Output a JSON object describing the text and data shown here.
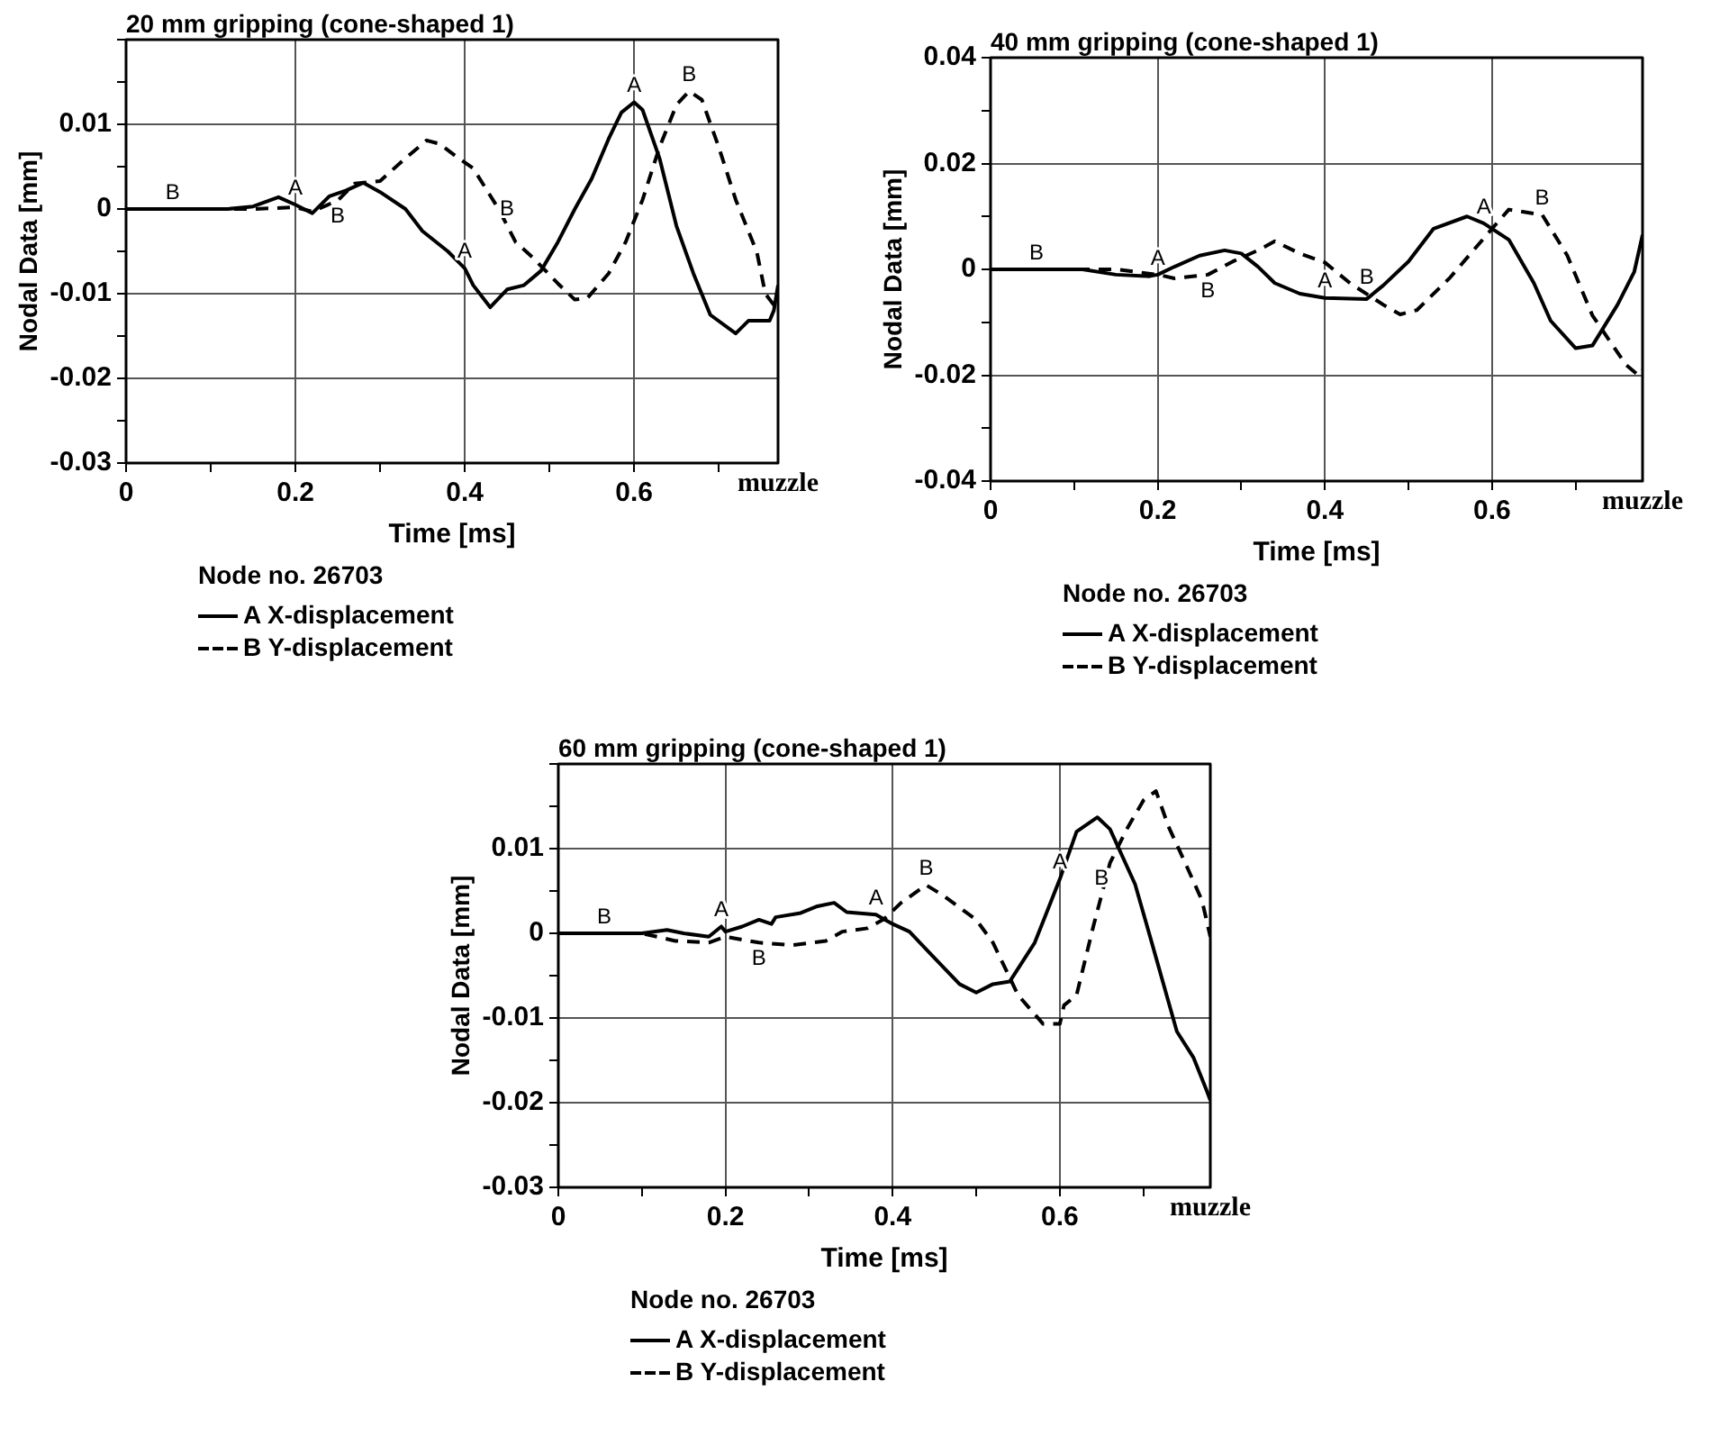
{
  "chart_data": [
    {
      "type": "line",
      "title": "20 mm gripping (cone-shaped 1)",
      "xlabel": "Time [ms]",
      "ylabel": "Nodal Data [mm]",
      "legend_title": "Node no. 26703",
      "legend": "bottom left",
      "grid": true,
      "marker": "none",
      "xlim": [
        0,
        0.77
      ],
      "xticks": [
        0,
        {
          "value": 0.1,
          "label": null
        },
        0.2,
        {
          "value": 0.3,
          "label": null
        },
        0.4,
        {
          "value": 0.5,
          "label": null
        },
        0.6,
        {
          "value": 0.7,
          "label": null
        }
      ],
      "ylim": [
        -0.03,
        0.02
      ],
      "yticks": [
        -0.03,
        {
          "value": -0.025,
          "label": null
        },
        -0.02,
        {
          "value": -0.015,
          "label": null
        },
        -0.01,
        {
          "value": -0.005,
          "label": null
        },
        0,
        {
          "value": 0.005,
          "label": null
        },
        0.01,
        {
          "value": 0.015,
          "label": null
        },
        {
          "value": 0.02,
          "label": null
        }
      ],
      "series": [
        {
          "name": "A X-displacement",
          "color": "#000000",
          "line_style": "solid",
          "x": [
            0,
            0.12,
            0.15,
            0.18,
            0.2,
            0.22,
            0.24,
            0.26,
            0.28,
            0.3,
            0.33,
            0.35,
            0.38,
            0.4,
            0.41,
            0.43,
            0.45,
            0.47,
            0.49,
            0.51,
            0.53,
            0.55,
            0.57,
            0.585,
            0.6,
            0.61,
            0.63,
            0.65,
            0.67,
            0.69,
            0.72,
            0.735,
            0.76,
            0.765,
            0.77
          ],
          "values": [
            0,
            0,
            0.0003,
            0.0014,
            0.0005,
            -0.0005,
            0.0015,
            0.0022,
            0.0031,
            0.002,
            0,
            -0.0026,
            -0.005,
            -0.007,
            -0.009,
            -0.0116,
            -0.0095,
            -0.009,
            -0.0073,
            -0.0039,
            0,
            0.0036,
            0.0083,
            0.0114,
            0.0126,
            0.0117,
            0.006,
            -0.002,
            -0.0076,
            -0.0125,
            -0.0147,
            -0.0132,
            -0.0132,
            -0.012,
            -0.009
          ]
        },
        {
          "name": "B Y-displacement",
          "color": "#000000",
          "line_style": "dashed",
          "x": [
            0,
            0.15,
            0.2,
            0.22,
            0.25,
            0.27,
            0.3,
            0.33,
            0.355,
            0.37,
            0.39,
            0.41,
            0.44,
            0.46,
            0.48,
            0.51,
            0.53,
            0.545,
            0.57,
            0.59,
            0.61,
            0.63,
            0.65,
            0.665,
            0.68,
            0.7,
            0.72,
            0.745,
            0.755,
            0.77
          ],
          "values": [
            0,
            0,
            0.0002,
            -0.0003,
            0.001,
            0.003,
            0.0033,
            0.006,
            0.0081,
            0.0077,
            0.0062,
            0.0048,
            0,
            -0.0039,
            -0.0057,
            -0.0088,
            -0.0107,
            -0.0105,
            -0.0076,
            -0.0039,
            0.0011,
            0.0073,
            0.0123,
            0.0139,
            0.0129,
            0.0073,
            0.0011,
            -0.0051,
            -0.01,
            -0.012
          ]
        }
      ],
      "annotations": [
        "muzzle",
        {
          "text": "B",
          "x": 0.055,
          "y": 0
        },
        {
          "text": "A",
          "x": 0.2,
          "y": 0.0005
        },
        {
          "text": "B",
          "x": 0.25,
          "y": 0.001
        },
        {
          "text": "A",
          "x": 0.4,
          "y": -0.007
        },
        {
          "text": "B",
          "x": 0.45,
          "y": -0.002
        },
        {
          "text": "A",
          "x": 0.6,
          "y": 0.0126
        },
        {
          "text": "B",
          "x": 0.665,
          "y": 0.0139
        }
      ]
    },
    {
      "type": "line",
      "title": "40 mm gripping (cone-shaped 1)",
      "xlabel": "Time [ms]",
      "ylabel": "Nodal Data [mm]",
      "legend_title": "Node no. 26703",
      "legend": "bottom left",
      "grid": true,
      "marker": "none",
      "xlim": [
        0,
        0.78
      ],
      "xticks": [
        0,
        {
          "value": 0.1,
          "label": null
        },
        0.2,
        {
          "value": 0.3,
          "label": null
        },
        0.4,
        {
          "value": 0.5,
          "label": null
        },
        0.6,
        {
          "value": 0.7,
          "label": null
        }
      ],
      "ylim": [
        -0.04,
        0.04
      ],
      "yticks": [
        -0.04,
        {
          "value": -0.03,
          "label": null
        },
        -0.02,
        {
          "value": -0.01,
          "label": null
        },
        0,
        {
          "value": 0.01,
          "label": null
        },
        0.02,
        {
          "value": 0.03,
          "label": null
        },
        0.04
      ],
      "series": [
        {
          "name": "A X-displacement",
          "color": "#000000",
          "line_style": "solid",
          "x": [
            0,
            0.11,
            0.15,
            0.19,
            0.2,
            0.22,
            0.25,
            0.28,
            0.3,
            0.32,
            0.34,
            0.37,
            0.4,
            0.45,
            0.47,
            0.5,
            0.53,
            0.57,
            0.59,
            0.62,
            0.65,
            0.67,
            0.7,
            0.72,
            0.75,
            0.77,
            0.78
          ],
          "values": [
            0,
            0,
            -0.001,
            -0.0013,
            -0.001,
            0.0005,
            0.0026,
            0.0036,
            0.003,
            0.0005,
            -0.0026,
            -0.0046,
            -0.0054,
            -0.0056,
            -0.003,
            0.0015,
            0.0077,
            0.01,
            0.0087,
            0.0056,
            -0.0026,
            -0.0097,
            -0.0149,
            -0.0144,
            -0.0067,
            -0.0005,
            0.0065
          ]
        },
        {
          "name": "B Y-displacement",
          "color": "#000000",
          "line_style": "dashed",
          "x": [
            0,
            0.15,
            0.2,
            0.22,
            0.26,
            0.29,
            0.32,
            0.34,
            0.37,
            0.4,
            0.43,
            0.47,
            0.49,
            0.51,
            0.55,
            0.6,
            0.62,
            0.66,
            0.69,
            0.72,
            0.76,
            0.775,
            0.78
          ],
          "values": [
            0,
            0,
            -0.001,
            -0.0017,
            -0.001,
            0.0015,
            0.0036,
            0.0053,
            0.003,
            0.0013,
            -0.0026,
            -0.0067,
            -0.0085,
            -0.0077,
            -0.0015,
            0.0077,
            0.0113,
            0.0103,
            0.0026,
            -0.0087,
            -0.018,
            -0.02,
            -0.019
          ]
        }
      ],
      "annotations": [
        "muzzle",
        {
          "text": "B",
          "x": 0.055,
          "y": 0
        },
        {
          "text": "A",
          "x": 0.2,
          "y": -0.001
        },
        {
          "text": "B",
          "x": 0.26,
          "y": -0.001
        },
        {
          "text": "A",
          "x": 0.4,
          "y": -0.0054
        },
        {
          "text": "B",
          "x": 0.45,
          "y": -0.0046
        },
        {
          "text": "A",
          "x": 0.59,
          "y": 0.0087
        },
        {
          "text": "B",
          "x": 0.66,
          "y": 0.0103
        }
      ]
    },
    {
      "type": "line",
      "title": "60 mm gripping (cone-shaped 1)",
      "xlabel": "Time [ms]",
      "ylabel": "Nodal Data [mm]",
      "legend_title": "Node no. 26703",
      "legend": "bottom left",
      "grid": true,
      "marker": "none",
      "xlim": [
        0,
        0.78
      ],
      "xticks": [
        0,
        {
          "value": 0.1,
          "label": null
        },
        0.2,
        {
          "value": 0.3,
          "label": null
        },
        0.4,
        {
          "value": 0.5,
          "label": null
        },
        0.6,
        {
          "value": 0.7,
          "label": null
        }
      ],
      "ylim": [
        -0.03,
        0.02
      ],
      "yticks": [
        -0.03,
        {
          "value": -0.025,
          "label": null
        },
        -0.02,
        {
          "value": -0.015,
          "label": null
        },
        -0.01,
        {
          "value": -0.005,
          "label": null
        },
        0,
        {
          "value": 0.005,
          "label": null
        },
        0.01,
        {
          "value": 0.015,
          "label": null
        },
        {
          "value": 0.02,
          "label": null
        }
      ],
      "series": [
        {
          "name": "A X-displacement",
          "color": "#000000",
          "line_style": "solid",
          "x": [
            0,
            0.1,
            0.13,
            0.15,
            0.18,
            0.195,
            0.2,
            0.22,
            0.24,
            0.255,
            0.26,
            0.29,
            0.31,
            0.33,
            0.345,
            0.38,
            0.4,
            0.42,
            0.45,
            0.48,
            0.5,
            0.52,
            0.54,
            0.57,
            0.6,
            0.62,
            0.645,
            0.66,
            0.69,
            0.71,
            0.74,
            0.76,
            0.775,
            0.78
          ],
          "values": [
            0,
            0,
            0.0004,
            0,
            -0.0004,
            0.0008,
            0.0002,
            0.0008,
            0.0016,
            0.0011,
            0.0019,
            0.0024,
            0.0032,
            0.0036,
            0.0025,
            0.0022,
            0.0011,
            0.0002,
            -0.0029,
            -0.006,
            -0.007,
            -0.006,
            -0.0057,
            -0.0011,
            0.0064,
            0.012,
            0.0137,
            0.0123,
            0.0058,
            -0.0011,
            -0.0116,
            -0.0147,
            -0.0184,
            -0.0197
          ]
        },
        {
          "name": "B Y-displacement",
          "color": "#000000",
          "line_style": "dashed",
          "x": [
            0,
            0.1,
            0.14,
            0.18,
            0.2,
            0.24,
            0.28,
            0.32,
            0.34,
            0.37,
            0.39,
            0.41,
            0.44,
            0.46,
            0.5,
            0.52,
            0.55,
            0.58,
            0.6,
            0.605,
            0.62,
            0.64,
            0.66,
            0.68,
            0.7,
            0.715,
            0.73,
            0.75,
            0.77,
            0.78
          ],
          "values": [
            0,
            0,
            -0.0009,
            -0.0011,
            -0.0004,
            -0.0011,
            -0.0014,
            -0.0009,
            0.0002,
            0.0006,
            0.0017,
            0.0036,
            0.0057,
            0.0045,
            0.0016,
            -0.0011,
            -0.0073,
            -0.0107,
            -0.0107,
            -0.0085,
            -0.0073,
            0.0008,
            0.0083,
            0.0123,
            0.0157,
            0.0168,
            0.0126,
            0.0083,
            0.0039,
            -0.0004
          ]
        }
      ],
      "annotations": [
        "muzzle",
        {
          "text": "B",
          "x": 0.055,
          "y": 0
        },
        {
          "text": "A",
          "x": 0.195,
          "y": 0.0008
        },
        {
          "text": "B",
          "x": 0.24,
          "y": -0.0011
        },
        {
          "text": "A",
          "x": 0.38,
          "y": 0.0022
        },
        {
          "text": "B",
          "x": 0.44,
          "y": 0.0057
        },
        {
          "text": "A",
          "x": 0.6,
          "y": 0.0064
        },
        {
          "text": "B",
          "x": 0.65,
          "y": 0.0045
        }
      ]
    }
  ]
}
